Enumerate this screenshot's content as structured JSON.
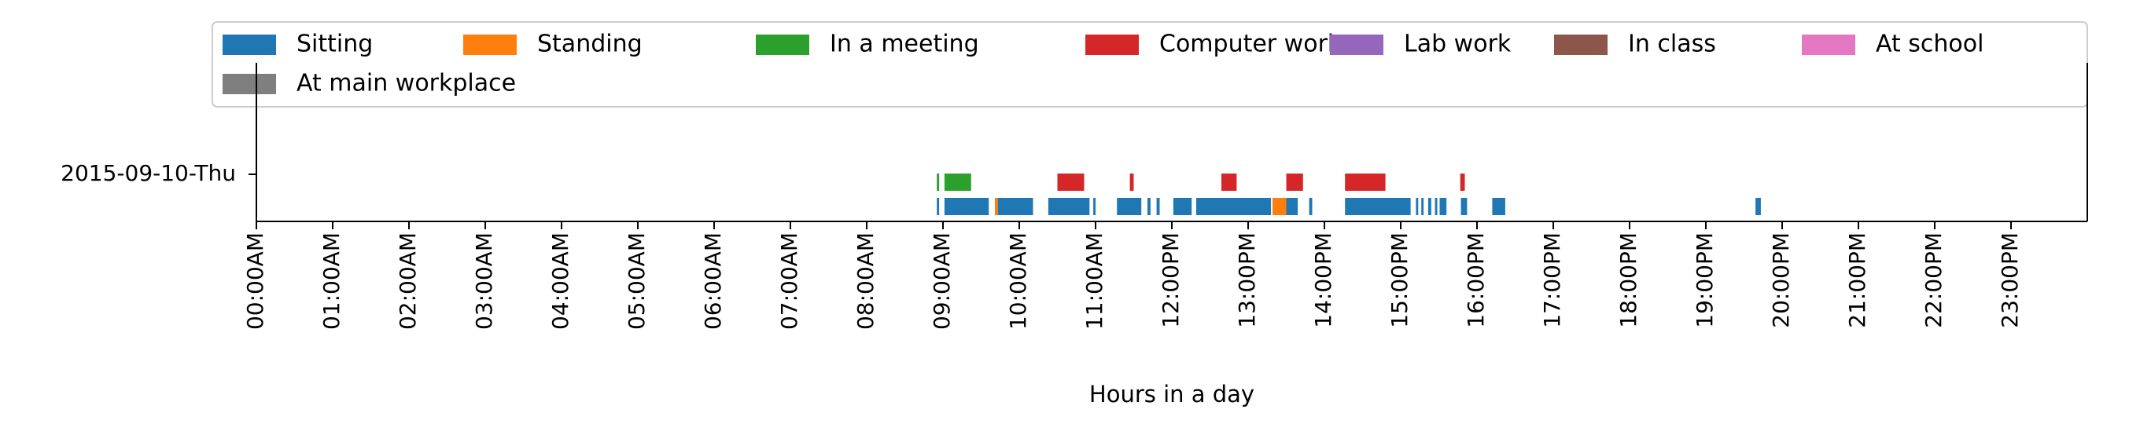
{
  "chart_data": {
    "type": "timeline",
    "title": "",
    "xlabel": "Hours in a day",
    "ylabel": "",
    "xlim_hours": [
      0,
      24
    ],
    "y_category": "2015-09-10-Thu",
    "x_ticks": [
      "00:00AM",
      "01:00AM",
      "02:00AM",
      "03:00AM",
      "04:00AM",
      "05:00AM",
      "06:00AM",
      "07:00AM",
      "08:00AM",
      "09:00AM",
      "10:00AM",
      "11:00AM",
      "12:00PM",
      "13:00PM",
      "14:00PM",
      "15:00PM",
      "16:00PM",
      "17:00PM",
      "18:00PM",
      "19:00PM",
      "20:00PM",
      "21:00PM",
      "22:00PM",
      "23:00PM"
    ],
    "legend_position": "top",
    "grid": false,
    "series": [
      {
        "name": "Sitting",
        "color": "#1f77b4",
        "lane": 0,
        "intervals": [
          [
            8.92,
            8.95
          ],
          [
            9.02,
            9.6
          ],
          [
            9.7,
            10.18
          ],
          [
            10.38,
            10.92
          ],
          [
            10.97,
            11.0
          ],
          [
            11.28,
            11.6
          ],
          [
            11.68,
            11.72
          ],
          [
            11.8,
            11.84
          ],
          [
            12.02,
            12.26
          ],
          [
            12.32,
            13.3
          ],
          [
            13.45,
            13.65
          ],
          [
            13.8,
            13.84
          ],
          [
            14.27,
            15.13
          ],
          [
            15.2,
            15.23
          ],
          [
            15.27,
            15.3
          ],
          [
            15.36,
            15.4
          ],
          [
            15.45,
            15.48
          ],
          [
            15.51,
            15.6
          ],
          [
            15.79,
            15.87
          ],
          [
            16.2,
            16.37
          ],
          [
            19.65,
            19.72
          ]
        ]
      },
      {
        "name": "Standing",
        "color": "#ff7f0e",
        "lane": 0,
        "intervals": [
          [
            9.68,
            9.72
          ],
          [
            13.32,
            13.5
          ]
        ]
      },
      {
        "name": "In a meeting",
        "color": "#2ca02c",
        "lane": 1,
        "intervals": [
          [
            8.92,
            8.95
          ],
          [
            9.02,
            9.37
          ]
        ]
      },
      {
        "name": "Computer work",
        "color": "#d62728",
        "lane": 1,
        "intervals": [
          [
            10.5,
            10.85
          ],
          [
            11.45,
            11.5
          ],
          [
            12.65,
            12.85
          ],
          [
            13.5,
            13.72
          ],
          [
            14.27,
            14.8
          ],
          [
            15.78,
            15.84
          ]
        ]
      },
      {
        "name": "Lab work",
        "color": "#9467bd",
        "lane": 2,
        "intervals": []
      },
      {
        "name": "In class",
        "color": "#8c564b",
        "lane": 2,
        "intervals": []
      },
      {
        "name": "At school",
        "color": "#e377c2",
        "lane": 2,
        "intervals": []
      },
      {
        "name": "At main workplace",
        "color": "#7f7f7f",
        "lane": 2,
        "intervals": []
      }
    ]
  }
}
